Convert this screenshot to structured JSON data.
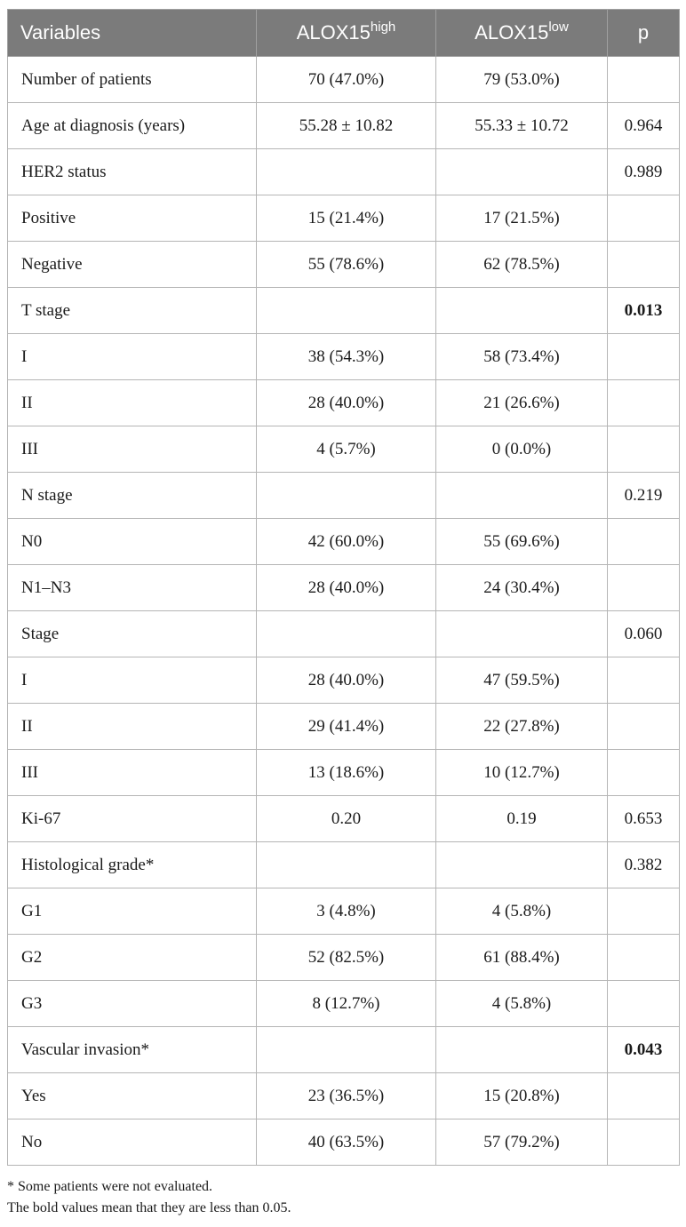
{
  "table": {
    "header": {
      "variables": "Variables",
      "high_base": "ALOX15",
      "high_sup": "high",
      "low_base": "ALOX15",
      "low_sup": "low",
      "p": "p"
    },
    "rows": [
      {
        "variable": "Number of patients",
        "high": "70 (47.0%)",
        "low": "79 (53.0%)",
        "p": "",
        "p_bold": false
      },
      {
        "variable": "Age at diagnosis (years)",
        "high": "55.28 ± 10.82",
        "low": "55.33 ± 10.72",
        "p": "0.964",
        "p_bold": false
      },
      {
        "variable": "HER2 status",
        "high": "",
        "low": "",
        "p": "0.989",
        "p_bold": false
      },
      {
        "variable": "Positive",
        "high": "15 (21.4%)",
        "low": "17 (21.5%)",
        "p": "",
        "p_bold": false
      },
      {
        "variable": "Negative",
        "high": "55 (78.6%)",
        "low": "62 (78.5%)",
        "p": "",
        "p_bold": false
      },
      {
        "variable": "T stage",
        "high": "",
        "low": "",
        "p": "0.013",
        "p_bold": true
      },
      {
        "variable": "I",
        "high": "38 (54.3%)",
        "low": "58 (73.4%)",
        "p": "",
        "p_bold": false
      },
      {
        "variable": "II",
        "high": "28 (40.0%)",
        "low": "21 (26.6%)",
        "p": "",
        "p_bold": false
      },
      {
        "variable": "III",
        "high": "4 (5.7%)",
        "low": "0 (0.0%)",
        "p": "",
        "p_bold": false
      },
      {
        "variable": "N stage",
        "high": "",
        "low": "",
        "p": "0.219",
        "p_bold": false
      },
      {
        "variable": "N0",
        "high": "42 (60.0%)",
        "low": "55 (69.6%)",
        "p": "",
        "p_bold": false
      },
      {
        "variable": "N1–N3",
        "high": "28 (40.0%)",
        "low": "24 (30.4%)",
        "p": "",
        "p_bold": false
      },
      {
        "variable": "Stage",
        "high": "",
        "low": "",
        "p": "0.060",
        "p_bold": false
      },
      {
        "variable": "I",
        "high": "28 (40.0%)",
        "low": "47 (59.5%)",
        "p": "",
        "p_bold": false
      },
      {
        "variable": "II",
        "high": "29 (41.4%)",
        "low": "22 (27.8%)",
        "p": "",
        "p_bold": false
      },
      {
        "variable": "III",
        "high": "13 (18.6%)",
        "low": "10 (12.7%)",
        "p": "",
        "p_bold": false
      },
      {
        "variable": "Ki-67",
        "high": "0.20",
        "low": "0.19",
        "p": "0.653",
        "p_bold": false
      },
      {
        "variable": "Histological grade*",
        "high": "",
        "low": "",
        "p": "0.382",
        "p_bold": false
      },
      {
        "variable": "G1",
        "high": "3 (4.8%)",
        "low": "4 (5.8%)",
        "p": "",
        "p_bold": false
      },
      {
        "variable": "G2",
        "high": "52 (82.5%)",
        "low": "61 (88.4%)",
        "p": "",
        "p_bold": false
      },
      {
        "variable": "G3",
        "high": "8 (12.7%)",
        "low": "4 (5.8%)",
        "p": "",
        "p_bold": false
      },
      {
        "variable": "Vascular invasion*",
        "high": "",
        "low": "",
        "p": "0.043",
        "p_bold": true
      },
      {
        "variable": "Yes",
        "high": "23 (36.5%)",
        "low": "15 (20.8%)",
        "p": "",
        "p_bold": false
      },
      {
        "variable": "No",
        "high": "40 (63.5%)",
        "low": "57 (79.2%)",
        "p": "",
        "p_bold": false
      }
    ]
  },
  "footnotes": {
    "note1": "* Some patients were not evaluated.",
    "note2": "The bold values mean that they are less than 0.05."
  },
  "colors": {
    "header_bg": "#7b7b7b",
    "header_text": "#ffffff",
    "grid": "#b5b5b5"
  }
}
